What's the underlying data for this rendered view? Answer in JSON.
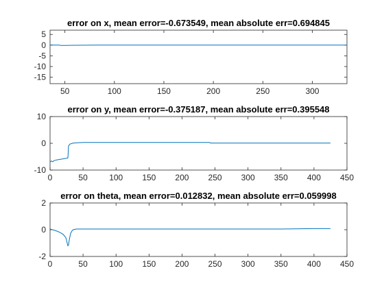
{
  "chart_data": [
    {
      "type": "line",
      "title": "error on x, mean error=-0.673549, mean absolute err=0.694845",
      "xlabel": "",
      "ylabel": "",
      "xlim": [
        35,
        335
      ],
      "ylim": [
        -18,
        7
      ],
      "xticks": [
        50,
        100,
        150,
        200,
        250,
        300
      ],
      "yticks": [
        5,
        0,
        -5,
        -10,
        -15
      ],
      "xtick_labels": [
        "50",
        "100",
        "150",
        "200",
        "250",
        "300"
      ],
      "ytick_labels": [
        "5",
        "0",
        "-5",
        "-10",
        "-15"
      ],
      "grid": false,
      "series": [
        {
          "color": "#0072bd",
          "x": [
            35,
            40,
            44,
            46,
            48,
            50,
            60,
            80,
            100,
            150,
            200,
            242,
            243,
            250,
            300,
            335
          ],
          "y": [
            0.1,
            0.05,
            0,
            -0.1,
            -0.15,
            -0.1,
            -0.05,
            0,
            0,
            0,
            0,
            0,
            0,
            0,
            0,
            0
          ]
        }
      ]
    },
    {
      "type": "line",
      "title": "error on y, mean error=-0.375187, mean absolute err=0.395548",
      "xlabel": "",
      "ylabel": "",
      "xlim": [
        0,
        450
      ],
      "ylim": [
        -10,
        10
      ],
      "xticks": [
        0,
        50,
        100,
        150,
        200,
        250,
        300,
        350,
        400,
        450
      ],
      "yticks": [
        10,
        0,
        -10
      ],
      "xtick_labels": [
        "0",
        "50",
        "100",
        "150",
        "200",
        "250",
        "300",
        "350",
        "400",
        "450"
      ],
      "ytick_labels": [
        "10",
        "0",
        "-10"
      ],
      "grid": false,
      "series": [
        {
          "color": "#0072bd",
          "x": [
            0,
            2,
            4,
            6,
            10,
            15,
            20,
            25,
            27,
            27.5,
            28,
            30,
            35,
            40,
            50,
            60,
            100,
            150,
            200,
            242,
            243,
            300,
            350,
            400,
            425
          ],
          "y": [
            -7,
            -6.6,
            -6.9,
            -6.5,
            -6.2,
            -6.0,
            -5.8,
            -5.6,
            -5.5,
            -3.2,
            -1.0,
            -0.3,
            0.1,
            0.2,
            0.3,
            0.3,
            0.3,
            0.3,
            0.3,
            0.3,
            0.1,
            0.1,
            0.1,
            0.1,
            0.1
          ]
        }
      ]
    },
    {
      "type": "line",
      "title": "error on theta, mean error=0.012832, mean absolute err=0.059998",
      "xlabel": "",
      "ylabel": "",
      "xlim": [
        0,
        450
      ],
      "ylim": [
        -2,
        2
      ],
      "xticks": [
        0,
        50,
        100,
        150,
        200,
        250,
        300,
        350,
        400,
        450
      ],
      "yticks": [
        2,
        0,
        -2
      ],
      "xtick_labels": [
        "0",
        "50",
        "100",
        "150",
        "200",
        "250",
        "300",
        "350",
        "400",
        "450"
      ],
      "ytick_labels": [
        "2",
        "0",
        "-2"
      ],
      "grid": false,
      "series": [
        {
          "color": "#0072bd",
          "x": [
            0,
            5,
            10,
            15,
            20,
            24,
            26,
            27,
            28,
            29,
            31,
            33,
            35,
            40,
            50,
            100,
            200,
            300,
            350,
            400,
            425
          ],
          "y": [
            0.05,
            -0.02,
            -0.1,
            -0.2,
            -0.35,
            -0.6,
            -1.0,
            -1.2,
            -1.15,
            -0.8,
            -0.3,
            -0.1,
            0.0,
            0.05,
            0.05,
            0.05,
            0.05,
            0.05,
            0.05,
            0.08,
            0.08
          ]
        }
      ]
    }
  ]
}
